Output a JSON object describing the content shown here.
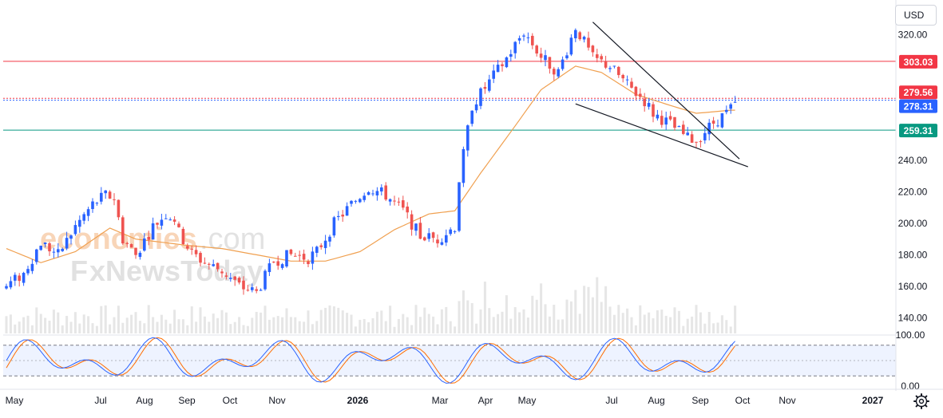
{
  "currency_button": "USD",
  "chart_data": [
    {
      "type": "candlestick",
      "x_axis_labels": [
        "May",
        "Jul",
        "Aug",
        "Sep",
        "Oct",
        "Nov",
        "2026",
        "Mar",
        "Apr",
        "May",
        "Jul",
        "Aug",
        "Sep",
        "Oct",
        "Nov",
        "2027"
      ],
      "x_axis_bold": [
        "2026",
        "2027"
      ],
      "y_axis_ticks": [
        140,
        160,
        180,
        200,
        220,
        240,
        320
      ],
      "y_axis_tick_labels": [
        "140.00",
        "160.00",
        "180.00",
        "200.00",
        "220.00",
        "240.00",
        "320.00"
      ],
      "ylim": [
        130,
        338
      ],
      "colors": {
        "up": "#2962ff",
        "down": "#ef5350",
        "ma": "#f0a050",
        "volume": "#dcdcdc"
      },
      "price_path": [
        [
          0,
          160
        ],
        [
          4,
          168
        ],
        [
          8,
          188
        ],
        [
          12,
          180
        ],
        [
          16,
          198
        ],
        [
          20,
          212
        ],
        [
          23,
          218
        ],
        [
          25,
          216
        ],
        [
          27,
          190
        ],
        [
          30,
          180
        ],
        [
          34,
          198
        ],
        [
          37,
          206
        ],
        [
          39,
          203
        ],
        [
          40,
          194
        ],
        [
          43,
          181
        ],
        [
          46,
          175
        ],
        [
          50,
          170
        ],
        [
          54,
          160
        ],
        [
          58,
          156
        ],
        [
          62,
          176
        ],
        [
          66,
          180
        ],
        [
          70,
          178
        ],
        [
          72,
          182
        ],
        [
          76,
          200
        ],
        [
          80,
          212
        ],
        [
          84,
          223
        ],
        [
          88,
          218
        ],
        [
          92,
          208
        ],
        [
          96,
          192
        ],
        [
          100,
          190
        ],
        [
          104,
          198
        ],
        [
          105,
          228
        ],
        [
          108,
          275
        ],
        [
          112,
          290
        ],
        [
          116,
          305
        ],
        [
          120,
          322
        ],
        [
          124,
          306
        ],
        [
          128,
          296
        ],
        [
          132,
          325
        ],
        [
          136,
          305
        ],
        [
          140,
          300
        ],
        [
          144,
          288
        ],
        [
          148,
          278
        ],
        [
          150,
          270
        ],
        [
          154,
          263
        ],
        [
          158,
          254
        ],
        [
          160,
          253
        ],
        [
          164,
          264
        ],
        [
          167,
          270
        ],
        [
          170,
          278
        ]
      ],
      "ma_path": [
        [
          0,
          184
        ],
        [
          8,
          175
        ],
        [
          16,
          182
        ],
        [
          24,
          197
        ],
        [
          30,
          190
        ],
        [
          36,
          188
        ],
        [
          42,
          186
        ],
        [
          50,
          184
        ],
        [
          58,
          180
        ],
        [
          66,
          176
        ],
        [
          74,
          176
        ],
        [
          82,
          182
        ],
        [
          90,
          196
        ],
        [
          98,
          206
        ],
        [
          104,
          208
        ],
        [
          110,
          232
        ],
        [
          118,
          262
        ],
        [
          124,
          285
        ],
        [
          132,
          300
        ],
        [
          138,
          296
        ],
        [
          146,
          282
        ],
        [
          154,
          275
        ],
        [
          160,
          270
        ],
        [
          168,
          272
        ]
      ],
      "volume_series_bars": 170,
      "horizontal_levels": [
        {
          "value": 303.03,
          "label": "303.03",
          "color": "#f23645",
          "style": "solid"
        },
        {
          "value": 279.56,
          "label": "279.56",
          "color": "#f23645",
          "style": "dotted"
        },
        {
          "value": 278.31,
          "label": "278.31",
          "color": "#2962ff",
          "style": "dotted"
        },
        {
          "value": 259.31,
          "label": "259.31",
          "color": "#089981",
          "style": "solid"
        }
      ],
      "trendlines": [
        {
          "from": [
            136,
            328
          ],
          "to": [
            170,
            241
          ]
        },
        {
          "from": [
            132,
            276
          ],
          "to": [
            172,
            236
          ]
        }
      ]
    },
    {
      "type": "line",
      "indicator": "stochastic",
      "y_axis_ticks": [
        0,
        100
      ],
      "y_axis_tick_labels": [
        "0.00",
        "100.00"
      ],
      "ylim": [
        0,
        100
      ],
      "band": [
        20,
        80
      ],
      "colors": {
        "k": "#2962ff",
        "d": "#ff6d00"
      }
    }
  ]
}
